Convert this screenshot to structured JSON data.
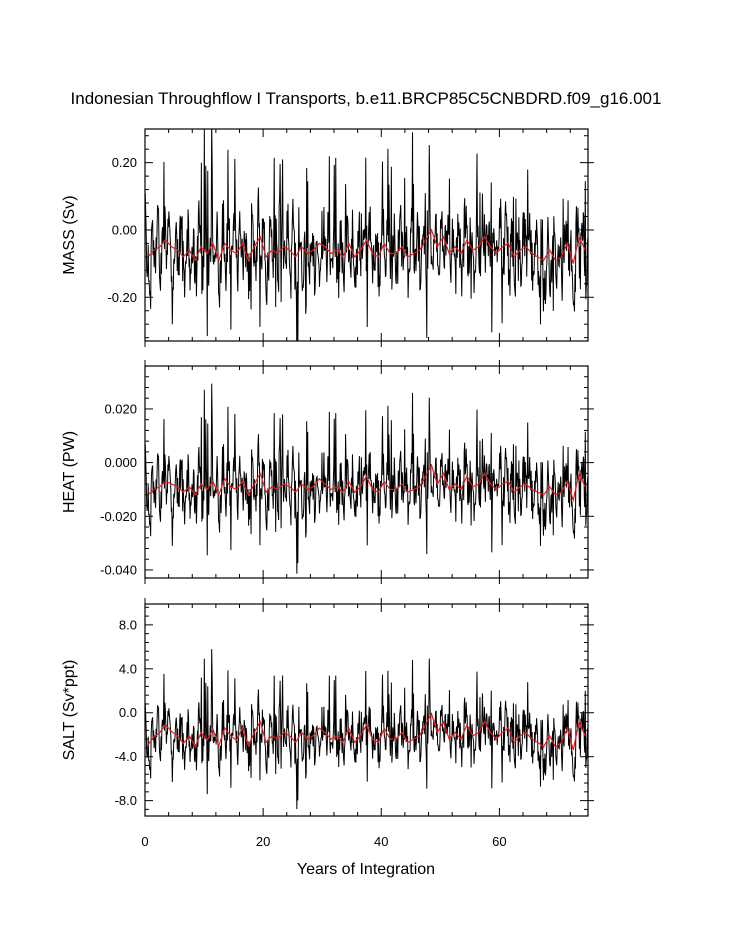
{
  "chart_data": {
    "type": "line",
    "title": "Indonesian Throughflow I Transports, b.e11.BRCP85C5CNBDRD.f09_g16.001",
    "xlabel": "Years of Integration",
    "xlim": [
      0,
      75
    ],
    "xticks": [
      0,
      20,
      40,
      60
    ],
    "xtick_labels": [
      "0",
      "20",
      "40",
      "60"
    ],
    "grid": false,
    "series_colors": {
      "monthly": "#000000",
      "annual": "#e41a1c"
    },
    "panels": [
      {
        "name": "mass",
        "ylabel": "MASS (Sv)",
        "ylim": [
          -0.33,
          0.3
        ],
        "yticks": [
          -0.2,
          0.0,
          0.2
        ],
        "ytick_labels": [
          "-0.20",
          "0.00",
          "0.20"
        ],
        "annual_mean": [
          -0.08,
          -0.06,
          -0.05,
          -0.03,
          -0.05,
          -0.06,
          -0.08,
          -0.06,
          -0.09,
          -0.05,
          -0.07,
          -0.04,
          -0.09,
          -0.04,
          -0.06,
          -0.07,
          -0.04,
          -0.09,
          -0.05,
          -0.02,
          -0.08,
          -0.06,
          -0.07,
          -0.05,
          -0.06,
          -0.08,
          -0.05,
          -0.07,
          -0.06,
          -0.04,
          -0.05,
          -0.07,
          -0.06,
          -0.08,
          -0.04,
          -0.08,
          -0.06,
          -0.03,
          -0.07,
          -0.08,
          -0.04,
          -0.07,
          -0.07,
          -0.05,
          -0.08,
          -0.07,
          -0.06,
          -0.03,
          0.0,
          -0.05,
          -0.02,
          -0.07,
          -0.05,
          -0.07,
          -0.03,
          -0.06,
          -0.05,
          -0.02,
          -0.05,
          -0.07,
          -0.05,
          -0.04,
          -0.08,
          -0.06,
          -0.05,
          -0.07,
          -0.08,
          -0.09,
          -0.06,
          -0.09,
          -0.08,
          -0.04,
          -0.1,
          -0.02,
          -0.06
        ]
      },
      {
        "name": "heat",
        "ylabel": "HEAT (PW)",
        "ylim": [
          -0.043,
          0.036
        ],
        "yticks": [
          -0.04,
          -0.02,
          0.0,
          0.02
        ],
        "ytick_labels": [
          "-0.040",
          "-0.020",
          "0.000",
          "0.020"
        ],
        "annual_mean": [
          -0.012,
          -0.01,
          -0.009,
          -0.007,
          -0.008,
          -0.009,
          -0.011,
          -0.009,
          -0.012,
          -0.008,
          -0.01,
          -0.007,
          -0.012,
          -0.006,
          -0.009,
          -0.01,
          -0.007,
          -0.012,
          -0.008,
          -0.004,
          -0.011,
          -0.009,
          -0.01,
          -0.008,
          -0.009,
          -0.011,
          -0.008,
          -0.01,
          -0.009,
          -0.006,
          -0.008,
          -0.01,
          -0.009,
          -0.011,
          -0.007,
          -0.011,
          -0.009,
          -0.005,
          -0.01,
          -0.011,
          -0.007,
          -0.01,
          -0.01,
          -0.008,
          -0.011,
          -0.01,
          -0.009,
          -0.005,
          -0.001,
          -0.008,
          -0.004,
          -0.01,
          -0.008,
          -0.01,
          -0.005,
          -0.009,
          -0.008,
          -0.004,
          -0.008,
          -0.01,
          -0.008,
          -0.007,
          -0.011,
          -0.009,
          -0.008,
          -0.01,
          -0.011,
          -0.012,
          -0.009,
          -0.012,
          -0.011,
          -0.007,
          -0.014,
          -0.004,
          -0.009
        ]
      },
      {
        "name": "salt",
        "ylabel": "SALT (Sv*ppt)",
        "ylim": [
          -9.4,
          9.9
        ],
        "yticks": [
          -8.0,
          -4.0,
          0.0,
          4.0,
          8.0
        ],
        "ytick_labels": [
          "-8.0",
          "-4.0",
          "0.0",
          "4.0",
          "8.0"
        ],
        "annual_mean": [
          -2.9,
          -2.2,
          -1.8,
          -1.1,
          -1.7,
          -2.1,
          -2.8,
          -2.1,
          -3.1,
          -1.8,
          -2.5,
          -1.5,
          -3.0,
          -1.4,
          -2.1,
          -2.5,
          -1.4,
          -3.0,
          -1.8,
          -0.8,
          -2.7,
          -2.1,
          -2.4,
          -1.8,
          -2.1,
          -2.7,
          -1.8,
          -2.4,
          -2.1,
          -1.4,
          -1.8,
          -2.4,
          -2.1,
          -2.7,
          -1.4,
          -2.7,
          -2.1,
          -1.1,
          -2.4,
          -2.7,
          -1.4,
          -2.4,
          -2.4,
          -1.8,
          -2.7,
          -2.4,
          -2.1,
          -1.1,
          -0.1,
          -1.8,
          -0.8,
          -2.4,
          -1.8,
          -2.4,
          -1.1,
          -2.1,
          -1.8,
          -0.8,
          -1.8,
          -2.4,
          -1.8,
          -1.4,
          -2.7,
          -2.1,
          -1.8,
          -2.4,
          -2.7,
          -3.1,
          -2.1,
          -3.1,
          -2.7,
          -1.4,
          -3.4,
          -0.8,
          -2.1
        ]
      }
    ],
    "monthly_series_note": ""
  }
}
